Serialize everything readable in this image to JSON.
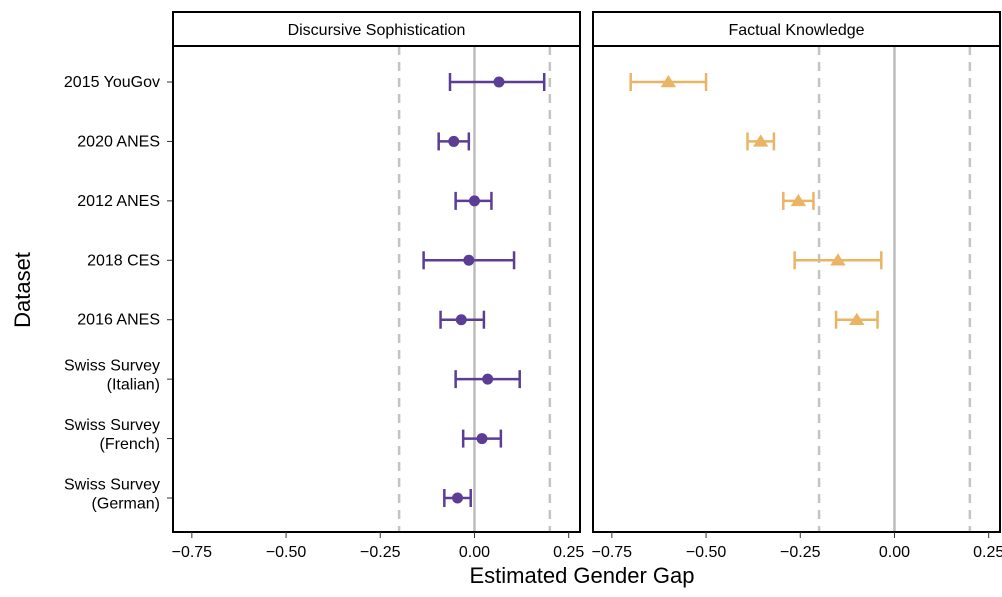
{
  "chart_data": {
    "type": "forest",
    "xlabel": "Estimated Gender Gap",
    "ylabel": "Dataset",
    "xlim": [
      -0.8,
      0.28
    ],
    "x_ticks": [
      -0.75,
      -0.5,
      -0.25,
      0.0,
      0.25
    ],
    "x_tick_labels": [
      "−0.75",
      "−0.50",
      "−0.25",
      "0.00",
      "0.25"
    ],
    "reference_line": 0,
    "dashed_lines": [
      -0.2,
      0.2
    ],
    "categories": [
      [
        "2015 YouGov"
      ],
      [
        "2020 ANES"
      ],
      [
        "2012 ANES"
      ],
      [
        "2018 CES"
      ],
      [
        "2016 ANES"
      ],
      [
        "Swiss Survey",
        "(Italian)"
      ],
      [
        "Swiss Survey",
        "(French)"
      ],
      [
        "Swiss Survey",
        "(German)"
      ]
    ],
    "panels": [
      {
        "title": "Discursive Sophistication",
        "marker": "circle",
        "color": "#5b3d96",
        "points": [
          {
            "estimate": 0.065,
            "low": -0.065,
            "high": 0.185
          },
          {
            "estimate": -0.055,
            "low": -0.095,
            "high": -0.015
          },
          {
            "estimate": 0.0,
            "low": -0.05,
            "high": 0.045
          },
          {
            "estimate": -0.015,
            "low": -0.135,
            "high": 0.105
          },
          {
            "estimate": -0.035,
            "low": -0.09,
            "high": 0.025
          },
          {
            "estimate": 0.035,
            "low": -0.05,
            "high": 0.12
          },
          {
            "estimate": 0.02,
            "low": -0.03,
            "high": 0.07
          },
          {
            "estimate": -0.045,
            "low": -0.08,
            "high": -0.01
          }
        ]
      },
      {
        "title": "Factual Knowledge",
        "marker": "triangle",
        "color": "#eab464",
        "points": [
          {
            "estimate": -0.6,
            "low": -0.7,
            "high": -0.5
          },
          {
            "estimate": -0.355,
            "low": -0.39,
            "high": -0.32
          },
          {
            "estimate": -0.255,
            "low": -0.295,
            "high": -0.215
          },
          {
            "estimate": -0.15,
            "low": -0.265,
            "high": -0.035
          },
          {
            "estimate": -0.1,
            "low": -0.155,
            "high": -0.045
          },
          null,
          null,
          null
        ]
      }
    ]
  }
}
